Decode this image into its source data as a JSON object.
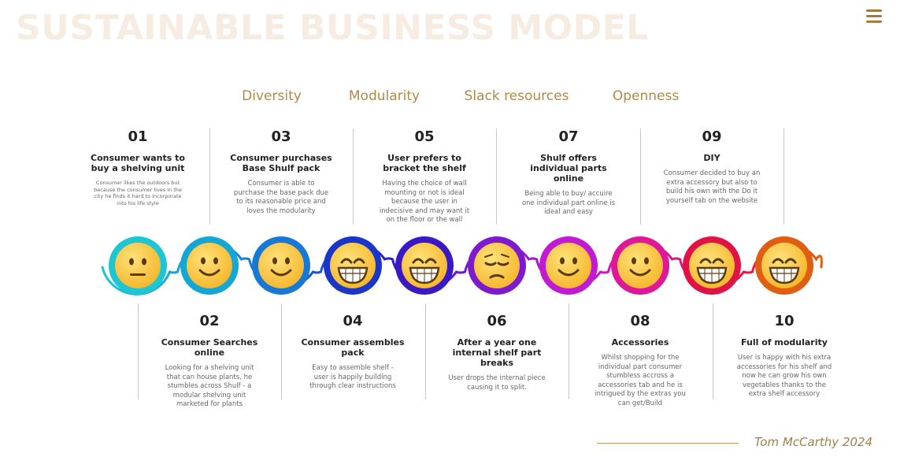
{
  "title": "SUSTAINABLE BUSINESS MODEL",
  "categories": [
    "Diversity",
    "Modularity",
    "Slack resources",
    "Openness"
  ],
  "steps": [
    {
      "num": "01",
      "title": "Consumer wants to buy a shelving unit",
      "desc": "Consumer likes the outdoors but because the consumer lives in the city he finds it hard to incorporate into his life style",
      "color": "#1ec6d3",
      "face": "neutral"
    },
    {
      "num": "02",
      "title": "Consumer Searches online",
      "desc": "Looking for a shelving unit that can house plants, he stumbles across Shulf - a modular shelving unit marketed for plants",
      "color": "#14a7d4",
      "face": "smile"
    },
    {
      "num": "03",
      "title": "Consumer purchases Base Shulf pack",
      "desc": "Consumer is able to purchase the base pack due to its reasonable price and loves the modularity",
      "color": "#1878d6",
      "face": "smile"
    },
    {
      "num": "04",
      "title": "Consumer assembles pack",
      "desc": "Easy to assemble shelf - user is happily building through clear instructions",
      "color": "#1936c8",
      "face": "grin"
    },
    {
      "num": "05",
      "title": "User prefers to bracket the shelf",
      "desc": "Having the choice of wall mounting or not is ideal because the user in indecisive and may want it on the floor or the wall",
      "color": "#3a18c6",
      "face": "grin"
    },
    {
      "num": "06",
      "title": "After a year one internal shelf part breaks",
      "desc": "User  drops the internal piece causing it to split.",
      "color": "#7d1ad0",
      "face": "sad"
    },
    {
      "num": "07",
      "title": "Shulf offers individual parts online",
      "desc": "Being able to buy/ accuire one individual part online is ideal and easy",
      "color": "#c21ad2",
      "face": "smile"
    },
    {
      "num": "08",
      "title": "Accessories",
      "desc": "Whilst shopping for the individual part consumer stumbless accross a accessories tab and he is intrigued by the extras you can get/Build",
      "color": "#e01798",
      "face": "smile"
    },
    {
      "num": "09",
      "title": "DIY",
      "desc": "Consumer decided to buy an extra accessory but also to build his own with the Do it yourself tab on the website",
      "color": "#e11245",
      "face": "grin"
    },
    {
      "num": "10",
      "title": "Full of modularity",
      "desc": "User is happy with his extra accessories for his shelf and now he can grow his own vegetables thanks to the extra shelf accessory",
      "color": "#e05e12",
      "face": "grin"
    }
  ],
  "signature": "Tom McCarthy 2024"
}
